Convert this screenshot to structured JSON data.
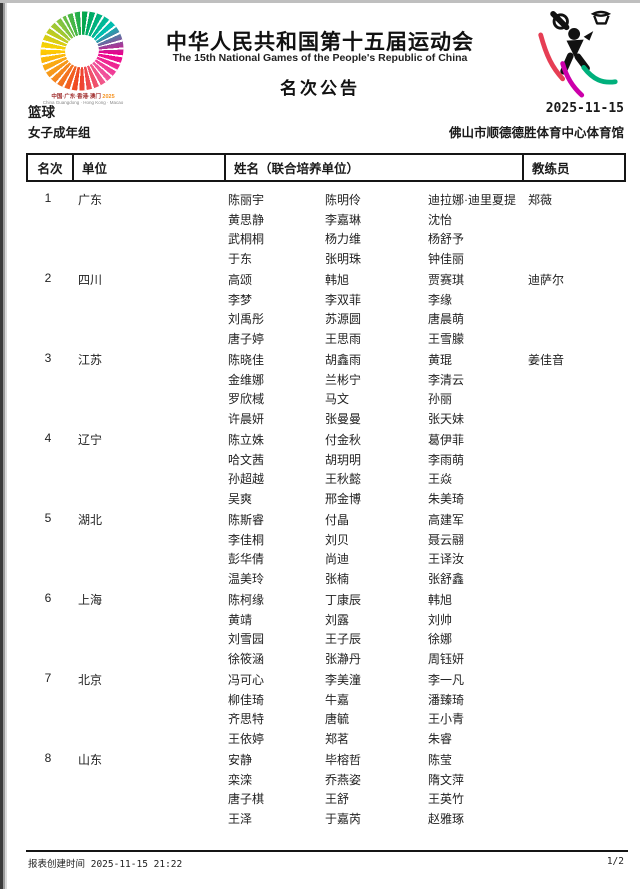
{
  "header": {
    "title_cn": "中华人民共和国第十五届运动会",
    "title_en": "The 15th National Games of the People's Republic of China",
    "doc_type": "名次公告",
    "event": "篮球",
    "group": "女子成年组",
    "date": "2025-11-15",
    "venue": "佛山市顺德德胜体育中心体育馆",
    "emblem_caption_cn": "中国·广东·香港·澳门 ",
    "emblem_caption_year": "2025",
    "emblem_caption_en": "China Guangdong · Hong Kong · Macao"
  },
  "colors": {
    "accent_magenta": "#ec008c",
    "accent_orange": "#f6921e",
    "accent_green": "#00a650",
    "picto_red": "#e63e54",
    "picto_magenta": "#cc00aa",
    "picto_green": "#00b07c"
  },
  "table": {
    "headers": [
      "名次",
      "单位",
      "姓名（联合培养单位）",
      "教练员"
    ],
    "rows": [
      {
        "rank": "1",
        "unit": "广东",
        "coach": "郑薇",
        "names": [
          [
            "陈丽宇",
            "陈明伶",
            "迪拉娜·迪里夏提"
          ],
          [
            "黄思静",
            "李嘉琳",
            "沈怡"
          ],
          [
            "武桐桐",
            "杨力维",
            "杨舒予"
          ],
          [
            "于东",
            "张明珠",
            "钟佳丽"
          ]
        ]
      },
      {
        "rank": "2",
        "unit": "四川",
        "coach": "迪萨尔",
        "names": [
          [
            "高颂",
            "韩旭",
            "贾赛琪"
          ],
          [
            "李梦",
            "李双菲",
            "李缘"
          ],
          [
            "刘禹彤",
            "苏源圆",
            "唐晨萌"
          ],
          [
            "唐子婷",
            "王思雨",
            "王雪朦"
          ]
        ]
      },
      {
        "rank": "3",
        "unit": "江苏",
        "coach": "姜佳音",
        "names": [
          [
            "陈晓佳",
            "胡鑫雨",
            "黄琨"
          ],
          [
            "金维娜",
            "兰彬宁",
            "李清云"
          ],
          [
            "罗欣棫",
            "马文",
            "孙丽"
          ],
          [
            "许晨妍",
            "张曼曼",
            "张天妹"
          ]
        ]
      },
      {
        "rank": "4",
        "unit": "辽宁",
        "coach": "",
        "names": [
          [
            "陈立姝",
            "付金秋",
            "葛伊菲"
          ],
          [
            "哈文茜",
            "胡玥明",
            "李雨萌"
          ],
          [
            "孙超越",
            "王秋懿",
            "王焱"
          ],
          [
            "吴爽",
            "邢金博",
            "朱美琦"
          ]
        ]
      },
      {
        "rank": "5",
        "unit": "湖北",
        "coach": "",
        "names": [
          [
            "陈斯睿",
            "付晶",
            "高建军"
          ],
          [
            "李佳桐",
            "刘贝",
            "聂云翮"
          ],
          [
            "彭华倩",
            "尚迪",
            "王译汝"
          ],
          [
            "温美玲",
            "张楠",
            "张舒鑫"
          ]
        ]
      },
      {
        "rank": "6",
        "unit": "上海",
        "coach": "",
        "names": [
          [
            "陈柯缘",
            "丁康辰",
            "韩旭"
          ],
          [
            "黄靖",
            "刘露",
            "刘帅"
          ],
          [
            "刘雪园",
            "王子辰",
            "徐娜"
          ],
          [
            "徐筱涵",
            "张瀞丹",
            "周钰妍"
          ]
        ]
      },
      {
        "rank": "7",
        "unit": "北京",
        "coach": "",
        "names": [
          [
            "冯可心",
            "李美潼",
            "李一凡"
          ],
          [
            "柳佳琦",
            "牛嘉",
            "潘臻琦"
          ],
          [
            "齐思特",
            "唐毓",
            "王小青"
          ],
          [
            "王依婷",
            "郑茗",
            "朱睿"
          ]
        ]
      },
      {
        "rank": "8",
        "unit": "山东",
        "coach": "",
        "names": [
          [
            "安静",
            "毕榕哲",
            "陈莹"
          ],
          [
            "栾滦",
            "乔燕姿",
            "隋文萍"
          ],
          [
            "唐子棋",
            "王舒",
            "王英竹"
          ],
          [
            "王泽",
            "于嘉芮",
            "赵雅琢"
          ]
        ]
      }
    ]
  },
  "footer": {
    "created": "报表创建时间 2025-11-15 21:22",
    "page": "1/2"
  }
}
